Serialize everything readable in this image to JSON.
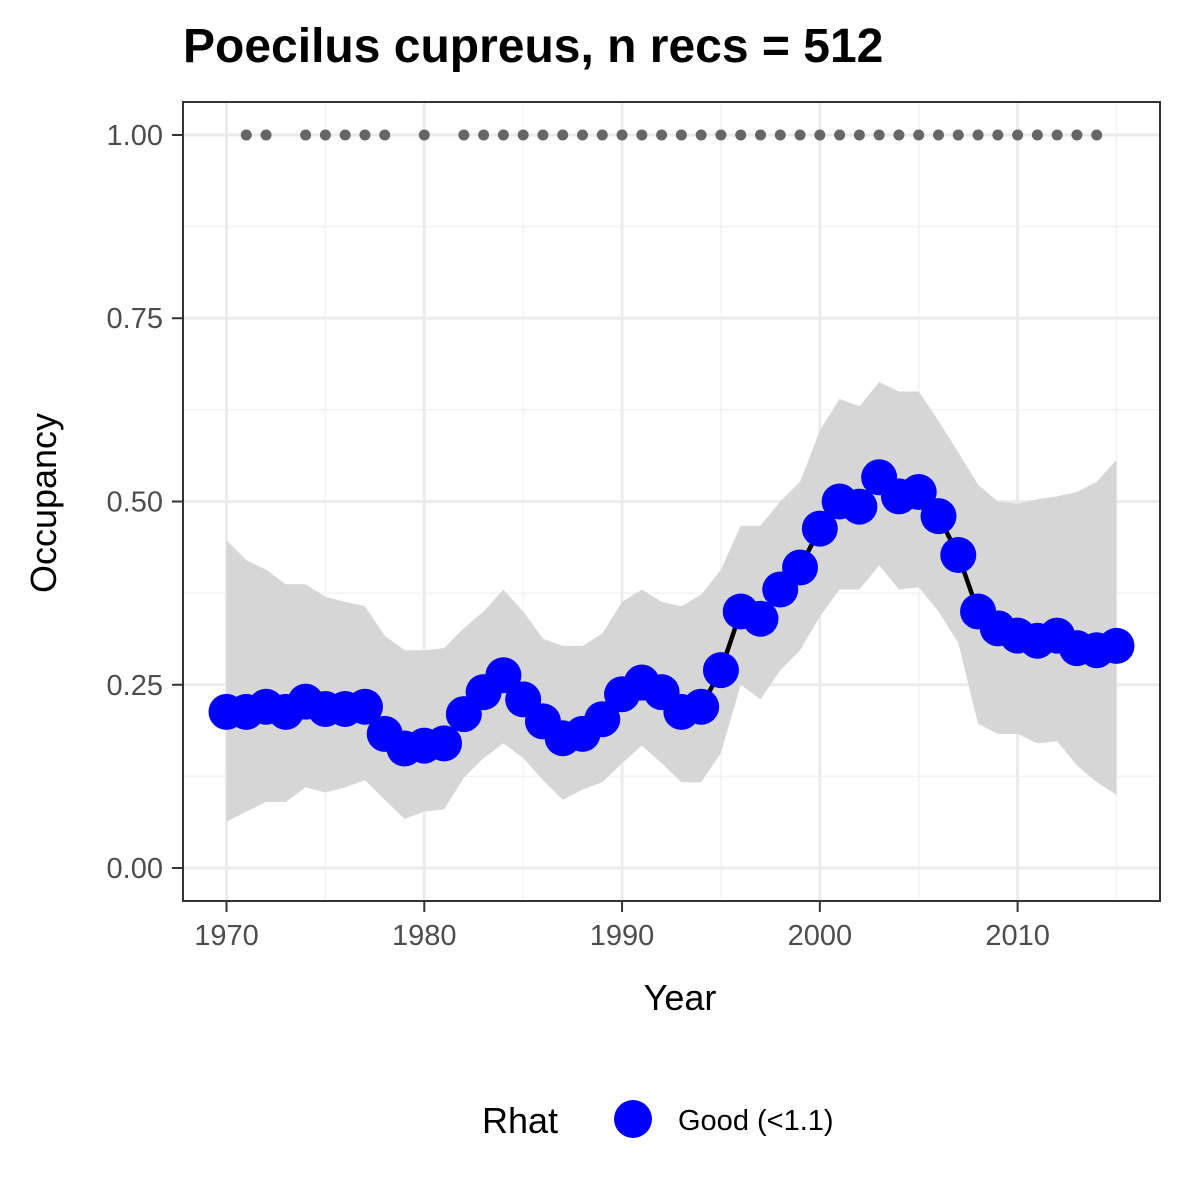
{
  "chart_data": {
    "type": "line",
    "title": "Poecilus cupreus, n recs = 512",
    "xlabel": "Year",
    "ylabel": "Occupancy",
    "xlim": [
      1967.8,
      2017.2
    ],
    "ylim": [
      -0.045,
      1.045
    ],
    "x_ticks": [
      1970,
      1980,
      1990,
      2000,
      2010
    ],
    "x_tick_labels": [
      "1970",
      "1980",
      "1990",
      "2000",
      "2010"
    ],
    "y_ticks": [
      0,
      0.25,
      0.5,
      0.75,
      1.0
    ],
    "y_tick_labels": [
      "0.00",
      "0.25",
      "0.50",
      "0.75",
      "1.00"
    ],
    "grid": true,
    "series": [
      {
        "type": "line+points",
        "x": [
          1970,
          1971,
          1972,
          1973,
          1974,
          1975,
          1976,
          1977,
          1978,
          1979,
          1980,
          1981,
          1982,
          1983,
          1984,
          1985,
          1986,
          1987,
          1988,
          1989,
          1990,
          1991,
          1992,
          1993,
          1994,
          1995,
          1996,
          1997,
          1998,
          1999,
          2000,
          2001,
          2002,
          2003,
          2004,
          2005,
          2006,
          2007,
          2008,
          2009,
          2010,
          2011,
          2012,
          2013,
          2014,
          2015
        ],
        "y": [
          0.213,
          0.213,
          0.22,
          0.213,
          0.227,
          0.217,
          0.217,
          0.22,
          0.183,
          0.163,
          0.167,
          0.17,
          0.21,
          0.24,
          0.263,
          0.23,
          0.2,
          0.177,
          0.183,
          0.203,
          0.237,
          0.253,
          0.24,
          0.213,
          0.22,
          0.27,
          0.35,
          0.34,
          0.38,
          0.41,
          0.463,
          0.5,
          0.493,
          0.533,
          0.507,
          0.513,
          0.48,
          0.427,
          0.35,
          0.327,
          0.317,
          0.31,
          0.317,
          0.3,
          0.297,
          0.303
        ],
        "lower": [
          0.063,
          0.077,
          0.09,
          0.09,
          0.11,
          0.103,
          0.11,
          0.12,
          0.093,
          0.067,
          0.077,
          0.08,
          0.123,
          0.15,
          0.17,
          0.15,
          0.12,
          0.093,
          0.107,
          0.117,
          0.143,
          0.167,
          0.143,
          0.117,
          0.117,
          0.157,
          0.25,
          0.23,
          0.27,
          0.297,
          0.343,
          0.38,
          0.38,
          0.413,
          0.38,
          0.383,
          0.35,
          0.307,
          0.197,
          0.183,
          0.183,
          0.17,
          0.173,
          0.14,
          0.117,
          0.1
        ],
        "upper": [
          0.447,
          0.42,
          0.407,
          0.387,
          0.387,
          0.37,
          0.363,
          0.357,
          0.317,
          0.297,
          0.297,
          0.3,
          0.327,
          0.35,
          0.38,
          0.35,
          0.313,
          0.303,
          0.303,
          0.32,
          0.363,
          0.38,
          0.363,
          0.357,
          0.373,
          0.407,
          0.467,
          0.467,
          0.5,
          0.527,
          0.597,
          0.64,
          0.63,
          0.663,
          0.65,
          0.65,
          0.61,
          0.567,
          0.523,
          0.5,
          0.497,
          0.503,
          0.507,
          0.513,
          0.527,
          0.557
        ],
        "line_color": "#000000",
        "point_color": "#0000ff",
        "ribbon_color": "#d6d6d6"
      },
      {
        "type": "points",
        "x": [
          1971,
          1972,
          1974,
          1975,
          1976,
          1977,
          1978,
          1980,
          1982,
          1983,
          1984,
          1985,
          1986,
          1987,
          1988,
          1989,
          1990,
          1991,
          1992,
          1993,
          1994,
          1995,
          1996,
          1997,
          1998,
          1999,
          2000,
          2001,
          2002,
          2003,
          2004,
          2005,
          2006,
          2007,
          2008,
          2009,
          2010,
          2011,
          2012,
          2013,
          2014
        ],
        "y": [
          1,
          1,
          1,
          1,
          1,
          1,
          1,
          1,
          1,
          1,
          1,
          1,
          1,
          1,
          1,
          1,
          1,
          1,
          1,
          1,
          1,
          1,
          1,
          1,
          1,
          1,
          1,
          1,
          1,
          1,
          1,
          1,
          1,
          1,
          1,
          1,
          1,
          1,
          1,
          1,
          1
        ],
        "point_color": "#666666"
      }
    ],
    "legend": {
      "position": "bottom",
      "title": "Rhat",
      "items": [
        {
          "label": "Good (<1.1)",
          "color": "#0000ff"
        }
      ]
    }
  }
}
